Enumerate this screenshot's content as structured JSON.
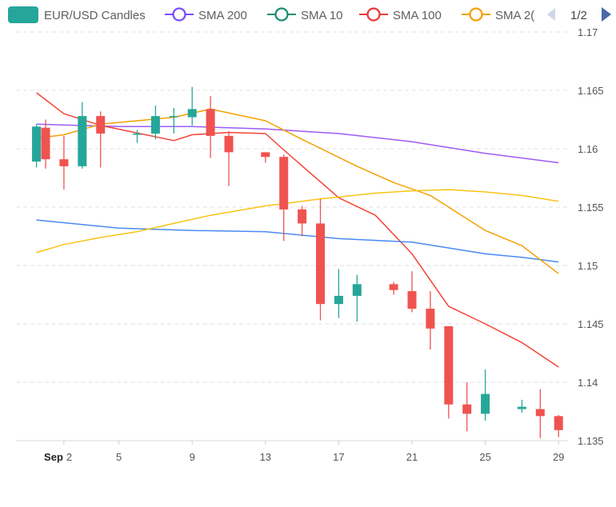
{
  "chart_data": {
    "type": "candlestick",
    "legend": {
      "items": [
        {
          "name": "EUR/USD Candles",
          "color": "#26a69a",
          "marker": "box"
        },
        {
          "name": "SMA 200",
          "color": "#7b4dff",
          "marker": "circle"
        },
        {
          "name": "SMA 10",
          "color": "#1a8f6f",
          "marker": "circle"
        },
        {
          "name": "SMA 100",
          "color": "#e83a3a",
          "marker": "circle"
        },
        {
          "name": "SMA 2(",
          "color": "#f5a000",
          "marker": "circle"
        }
      ],
      "page": "1/2",
      "position": "top"
    },
    "colors": {
      "up": "#26a69a",
      "down": "#ef5350"
    },
    "ylim": [
      1.135,
      1.17
    ],
    "yticks": [
      "1.17",
      "1.165",
      "1.16",
      "1.155",
      "1.15",
      "1.145",
      "1.14",
      "1.135"
    ],
    "xticks": [
      {
        "day": 1,
        "month": "Sep",
        "label": "2"
      },
      {
        "day": 4,
        "label": "5"
      },
      {
        "day": 8,
        "label": "9"
      },
      {
        "day": 12,
        "label": "13"
      },
      {
        "day": 16,
        "label": "17"
      },
      {
        "day": 20,
        "label": "21"
      },
      {
        "day": 24,
        "label": "25"
      },
      {
        "day": 28,
        "label": "29"
      }
    ],
    "grid": "horizontal dashed",
    "candles": [
      {
        "day": -0.5,
        "open": 1.1589,
        "high": 1.1621,
        "low": 1.1584,
        "close": 1.1619
      },
      {
        "day": 0,
        "open": 1.1618,
        "high": 1.1625,
        "low": 1.1583,
        "close": 1.1591
      },
      {
        "day": 1,
        "open": 1.1591,
        "high": 1.1611,
        "low": 1.1565,
        "close": 1.1585
      },
      {
        "day": 2,
        "open": 1.1585,
        "high": 1.164,
        "low": 1.1583,
        "close": 1.1628
      },
      {
        "day": 3,
        "open": 1.1628,
        "high": 1.1632,
        "low": 1.1584,
        "close": 1.1613
      },
      {
        "day": 5,
        "open": 1.1613,
        "high": 1.1616,
        "low": 1.1605,
        "close": 1.1613
      },
      {
        "day": 6,
        "open": 1.1613,
        "high": 1.1637,
        "low": 1.1608,
        "close": 1.1628
      },
      {
        "day": 7,
        "open": 1.1627,
        "high": 1.1635,
        "low": 1.1613,
        "close": 1.1628
      },
      {
        "day": 8,
        "open": 1.1627,
        "high": 1.1653,
        "low": 1.162,
        "close": 1.1634
      },
      {
        "day": 9,
        "open": 1.1634,
        "high": 1.1645,
        "low": 1.1592,
        "close": 1.1611
      },
      {
        "day": 10,
        "open": 1.1611,
        "high": 1.1615,
        "low": 1.1568,
        "close": 1.1597
      },
      {
        "day": 12,
        "open": 1.1597,
        "high": 1.1597,
        "low": 1.1588,
        "close": 1.1593
      },
      {
        "day": 13,
        "open": 1.1593,
        "high": 1.1595,
        "low": 1.1521,
        "close": 1.1548
      },
      {
        "day": 14,
        "open": 1.1548,
        "high": 1.1551,
        "low": 1.1525,
        "close": 1.1536
      },
      {
        "day": 15,
        "open": 1.1536,
        "high": 1.1557,
        "low": 1.1453,
        "close": 1.1467
      },
      {
        "day": 16,
        "open": 1.1467,
        "high": 1.1497,
        "low": 1.1455,
        "close": 1.1474
      },
      {
        "day": 17,
        "open": 1.1474,
        "high": 1.1492,
        "low": 1.1452,
        "close": 1.1484
      },
      {
        "day": 19,
        "open": 1.1484,
        "high": 1.1486,
        "low": 1.1475,
        "close": 1.1479
      },
      {
        "day": 20,
        "open": 1.1478,
        "high": 1.1495,
        "low": 1.146,
        "close": 1.1463
      },
      {
        "day": 21,
        "open": 1.1463,
        "high": 1.1478,
        "low": 1.1428,
        "close": 1.1446
      },
      {
        "day": 22,
        "open": 1.1448,
        "high": 1.1448,
        "low": 1.1369,
        "close": 1.1381
      },
      {
        "day": 23,
        "open": 1.1381,
        "high": 1.14,
        "low": 1.1358,
        "close": 1.1373
      },
      {
        "day": 24,
        "open": 1.1373,
        "high": 1.1411,
        "low": 1.1367,
        "close": 1.139
      },
      {
        "day": 26,
        "open": 1.1377,
        "high": 1.1385,
        "low": 1.1374,
        "close": 1.1379
      },
      {
        "day": 27,
        "open": 1.1377,
        "high": 1.1394,
        "low": 1.1352,
        "close": 1.1371
      },
      {
        "day": 28,
        "open": 1.1371,
        "high": 1.1372,
        "low": 1.1353,
        "close": 1.1359
      }
    ],
    "sma_lines": [
      {
        "color": "#9c5bf5",
        "points": [
          [
            -0.5,
            1.1621
          ],
          [
            4,
            1.1619
          ],
          [
            8,
            1.1619
          ],
          [
            12,
            1.1617
          ],
          [
            16,
            1.1613
          ],
          [
            20,
            1.1606
          ],
          [
            24,
            1.1596
          ],
          [
            28,
            1.1588
          ]
        ]
      },
      {
        "color": "#f44336",
        "points": [
          [
            -0.5,
            1.1648
          ],
          [
            1,
            1.163
          ],
          [
            3,
            1.162
          ],
          [
            7,
            1.1607
          ],
          [
            8,
            1.1612
          ],
          [
            10,
            1.1614
          ],
          [
            12,
            1.1613
          ],
          [
            13,
            1.1599
          ],
          [
            16,
            1.1558
          ],
          [
            18,
            1.1543
          ],
          [
            20,
            1.151
          ],
          [
            22,
            1.1465
          ],
          [
            24,
            1.145
          ],
          [
            26,
            1.1434
          ],
          [
            28,
            1.1413
          ]
        ]
      },
      {
        "color": "#4a8af4",
        "points": [
          [
            -0.5,
            1.1539
          ],
          [
            4,
            1.1532
          ],
          [
            8,
            1.153
          ],
          [
            12,
            1.1529
          ],
          [
            16,
            1.1523
          ],
          [
            20,
            1.152
          ],
          [
            24,
            1.151
          ],
          [
            26,
            1.1507
          ],
          [
            28,
            1.1503
          ]
        ]
      },
      {
        "color": "#f5a000",
        "points": [
          [
            -0.5,
            1.1609
          ],
          [
            1,
            1.1612
          ],
          [
            3,
            1.1621
          ],
          [
            5,
            1.1624
          ],
          [
            7,
            1.1627
          ],
          [
            9,
            1.1634
          ],
          [
            12,
            1.1624
          ],
          [
            14,
            1.1608
          ],
          [
            17,
            1.1585
          ],
          [
            19,
            1.1571
          ],
          [
            21,
            1.156
          ],
          [
            24,
            1.153
          ],
          [
            26,
            1.1517
          ],
          [
            28,
            1.1493
          ]
        ]
      },
      {
        "color": "#f7c315",
        "points": [
          [
            -0.5,
            1.1511
          ],
          [
            1,
            1.1518
          ],
          [
            3,
            1.1524
          ],
          [
            5,
            1.1529
          ],
          [
            7,
            1.1536
          ],
          [
            9,
            1.1543
          ],
          [
            12,
            1.1551
          ],
          [
            15,
            1.1557
          ],
          [
            18,
            1.1562
          ],
          [
            20,
            1.1564
          ],
          [
            22,
            1.1565
          ],
          [
            24,
            1.1563
          ],
          [
            26,
            1.156
          ],
          [
            28,
            1.1555
          ]
        ]
      }
    ]
  }
}
